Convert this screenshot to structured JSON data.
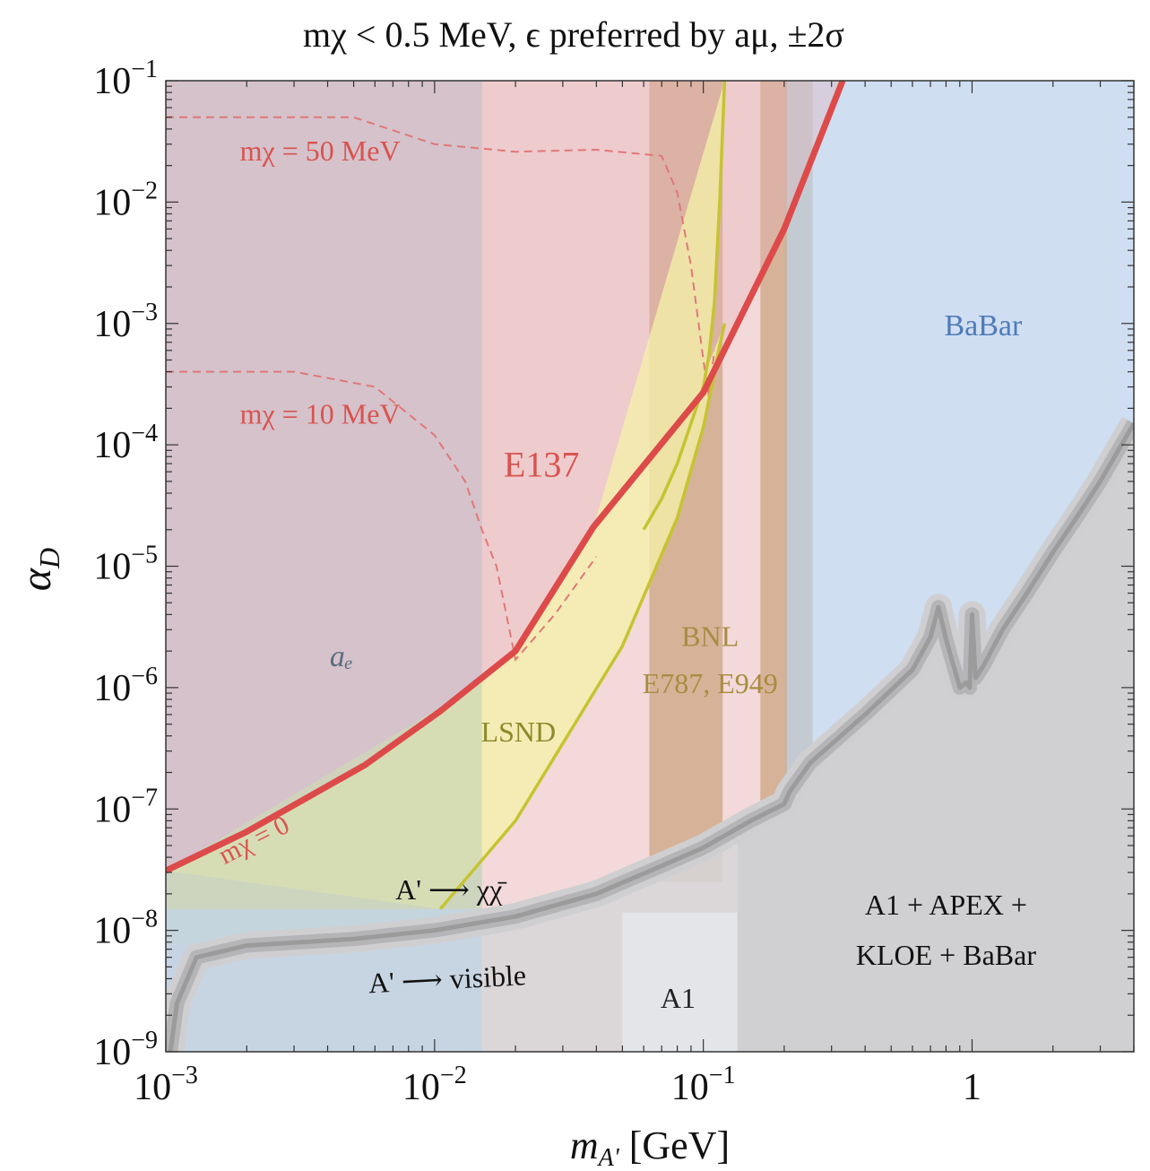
{
  "chart_data": {
    "type": "area",
    "title": "mχ < 0.5 MeV,  ϵ  preferred by  aμ, ±2σ",
    "xlabel": "mA' [GeV]",
    "ylabel": "αD",
    "xscale": "log",
    "yscale": "log",
    "xlim": [
      0.001,
      4.0
    ],
    "ylim": [
      1e-09,
      0.1
    ],
    "x_ticks": [
      {
        "value": 0.001,
        "base": "10",
        "exp": "−3"
      },
      {
        "value": 0.01,
        "base": "10",
        "exp": "−2"
      },
      {
        "value": 0.1,
        "base": "10",
        "exp": "−1"
      },
      {
        "value": 1,
        "base": "1",
        "exp": ""
      }
    ],
    "y_ticks": [
      {
        "value": 1e-09,
        "base": "10",
        "exp": "−9"
      },
      {
        "value": 1e-08,
        "base": "10",
        "exp": "−8"
      },
      {
        "value": 1e-07,
        "base": "10",
        "exp": "−7"
      },
      {
        "value": 1e-06,
        "base": "10",
        "exp": "−6"
      },
      {
        "value": 1e-05,
        "base": "10",
        "exp": "−5"
      },
      {
        "value": 0.0001,
        "base": "10",
        "exp": "−4"
      },
      {
        "value": 0.001,
        "base": "10",
        "exp": "−3"
      },
      {
        "value": 0.01,
        "base": "10",
        "exp": "−2"
      },
      {
        "value": 0.1,
        "base": "10",
        "exp": "−1"
      }
    ],
    "regions": [
      {
        "label": "",
        "kind": "vband",
        "x": [
          0.015,
          0.25
        ],
        "y": [
          1e-09,
          0.1
        ],
        "color": "#e8b3b3",
        "opacity": 0.5
      },
      {
        "label": "",
        "kind": "vband",
        "x": [
          0.001,
          0.015
        ],
        "y": [
          1e-09,
          0.1
        ],
        "color": "#b3c8db",
        "opacity": 0.65
      },
      {
        "label": "",
        "kind": "vband",
        "x": [
          0.001,
          0.015
        ],
        "y": [
          1e-09,
          0.1
        ],
        "color": "#cbbec6",
        "opacity": 0.55
      },
      {
        "label": "",
        "kind": "vband",
        "x": [
          0.2,
          4.0
        ],
        "y": [
          1e-09,
          0.1
        ],
        "color": "#cfdef1",
        "opacity": 1
      },
      {
        "label": "",
        "kind": "vband",
        "x": [
          0.063,
          0.118
        ],
        "y": [
          2.5e-08,
          0.1
        ],
        "color": "#c9a27c",
        "opacity": 0.7
      },
      {
        "label": "",
        "kind": "vband",
        "x": [
          0.163,
          0.205
        ],
        "y": [
          1e-07,
          0.1
        ],
        "color": "#c9a27c",
        "opacity": 0.7
      },
      {
        "label": "",
        "kind": "vband",
        "x": [
          0.205,
          0.255
        ],
        "y": [
          1e-07,
          0.1
        ],
        "color": "#bdbdbd",
        "opacity": 0.6
      },
      {
        "label": "",
        "kind": "vband",
        "x": [
          0.05,
          0.134
        ],
        "y": [
          1e-09,
          1.4e-08
        ],
        "color": "#e6e7ea",
        "opacity": 1
      }
    ],
    "series": [
      {
        "name": "mχ = 0",
        "role": "E137 bound",
        "color": "#dd4a4a",
        "x": [
          0.001,
          0.002,
          0.0055,
          0.0105,
          0.02,
          0.039,
          0.1,
          0.2,
          0.33
        ],
        "y": [
          3.1e-08,
          6.5e-08,
          2.3e-07,
          6.4e-07,
          2e-06,
          2.1e-05,
          0.00027,
          0.006,
          0.1
        ]
      },
      {
        "name": "",
        "role": "LSND upper",
        "color": "#c5c431",
        "x": [
          0.12,
          0.115,
          0.11,
          0.105,
          0.1,
          0.09,
          0.08,
          0.07,
          0.06
        ],
        "y": [
          0.1,
          0.01,
          0.0015,
          0.00055,
          0.0003,
          0.00015,
          7e-05,
          3.6e-05,
          2e-05
        ]
      },
      {
        "name": "",
        "role": "LSND lower",
        "color": "#c5c431",
        "x": [
          0.0105,
          0.02,
          0.05,
          0.08,
          0.1,
          0.108,
          0.114,
          0.12
        ],
        "y": [
          1.5e-08,
          8e-08,
          2.2e-06,
          2.5e-05,
          0.00014,
          0.00032,
          0.0006,
          0.001
        ]
      },
      {
        "name": "A' → visible",
        "role": "visible-decay bound (lower edge of grey)",
        "color": "#9b9b9b",
        "x": [
          0.00104,
          0.0011,
          0.0013,
          0.002,
          0.005,
          0.01,
          0.02,
          0.04,
          0.07,
          0.1,
          0.15,
          0.2,
          0.21,
          0.25,
          0.4,
          0.6,
          0.7,
          0.75,
          0.8,
          0.9,
          0.95,
          0.98,
          1.0,
          1.03,
          1.1,
          1.3,
          1.6,
          2.0,
          2.5,
          3.0,
          4.0
        ],
        "y": [
          1e-09,
          2.5e-09,
          6e-09,
          7.5e-09,
          8.5e-09,
          1e-08,
          1.3e-08,
          2e-08,
          3.4e-08,
          4.8e-08,
          8e-08,
          1.1e-07,
          1.4e-07,
          2.4e-07,
          6e-07,
          1.4e-06,
          2.6e-06,
          4.6e-06,
          2.5e-06,
          1e-06,
          1.1e-06,
          1e-06,
          4e-06,
          1.2e-06,
          1.5e-06,
          3e-06,
          6e-06,
          1.3e-05,
          2.7e-05,
          5e-05,
          0.00015
        ]
      },
      {
        "name": "mχ = 50 MeV",
        "role": "dashed",
        "color": "#e07878",
        "x": [
          0.001,
          0.005,
          0.01,
          0.02,
          0.04,
          0.07,
          0.08,
          0.09,
          0.1,
          0.105,
          0.11
        ],
        "y": [
          0.05,
          0.05,
          0.03,
          0.026,
          0.027,
          0.024,
          0.012,
          0.003,
          0.0005,
          0.00025,
          0.0006
        ]
      },
      {
        "name": "mχ = 10 MeV",
        "role": "dashed",
        "color": "#e07878",
        "x": [
          0.001,
          0.003,
          0.006,
          0.01,
          0.013,
          0.015,
          0.017,
          0.0185,
          0.02,
          0.028,
          0.04
        ],
        "y": [
          0.0004,
          0.0004,
          0.0003,
          0.00012,
          5e-05,
          2e-05,
          1e-05,
          4e-06,
          1.7e-06,
          4e-06,
          1.2e-05
        ]
      }
    ],
    "labels": [
      {
        "text": "mχ = 50 MeV",
        "x": 0.00375,
        "y": 0.022,
        "color": "#d9534f"
      },
      {
        "text": "mχ = 10 MeV",
        "x": 0.00375,
        "y": 0.00015,
        "color": "#d9534f"
      },
      {
        "text": "E137",
        "x": 0.025,
        "y": 5.5e-05,
        "color": "#d9534f"
      },
      {
        "text": "BaBar",
        "x": 1.1,
        "y": 0.0008,
        "color": "#4f7bb9"
      },
      {
        "text": "aₑ",
        "x": 0.0045,
        "y": 1.5e-06,
        "color": "#5a6e80"
      },
      {
        "text": "BNL",
        "x": 0.106,
        "y": 2.2e-06,
        "color": "#a88c42"
      },
      {
        "text": "E787, E949",
        "x": 0.106,
        "y": 9e-07,
        "color": "#a88c42"
      },
      {
        "text": "LSND",
        "x": 0.0205,
        "y": 3.6e-07,
        "color": "#8a8a2a"
      },
      {
        "text": "mχ = 0",
        "x": 0.0022,
        "y": 4.8e-08,
        "color": "#d9534f"
      },
      {
        "text": "A' ⟶ χχ̄",
        "x": 0.0113,
        "y": 1.8e-08,
        "color": "#111111"
      },
      {
        "text": "A' ⟶ visible",
        "x": 0.0112,
        "y": 3.3e-09,
        "color": "#111111"
      },
      {
        "text": "A1",
        "x": 0.0805,
        "y": 2.3e-09,
        "color": "#222222"
      },
      {
        "text": "A1 + APEX +",
        "x": 0.8,
        "y": 1.35e-08,
        "color": "#111111"
      },
      {
        "text": "KLOE + BaBar",
        "x": 0.8,
        "y": 5.2e-09,
        "color": "#111111"
      }
    ]
  }
}
